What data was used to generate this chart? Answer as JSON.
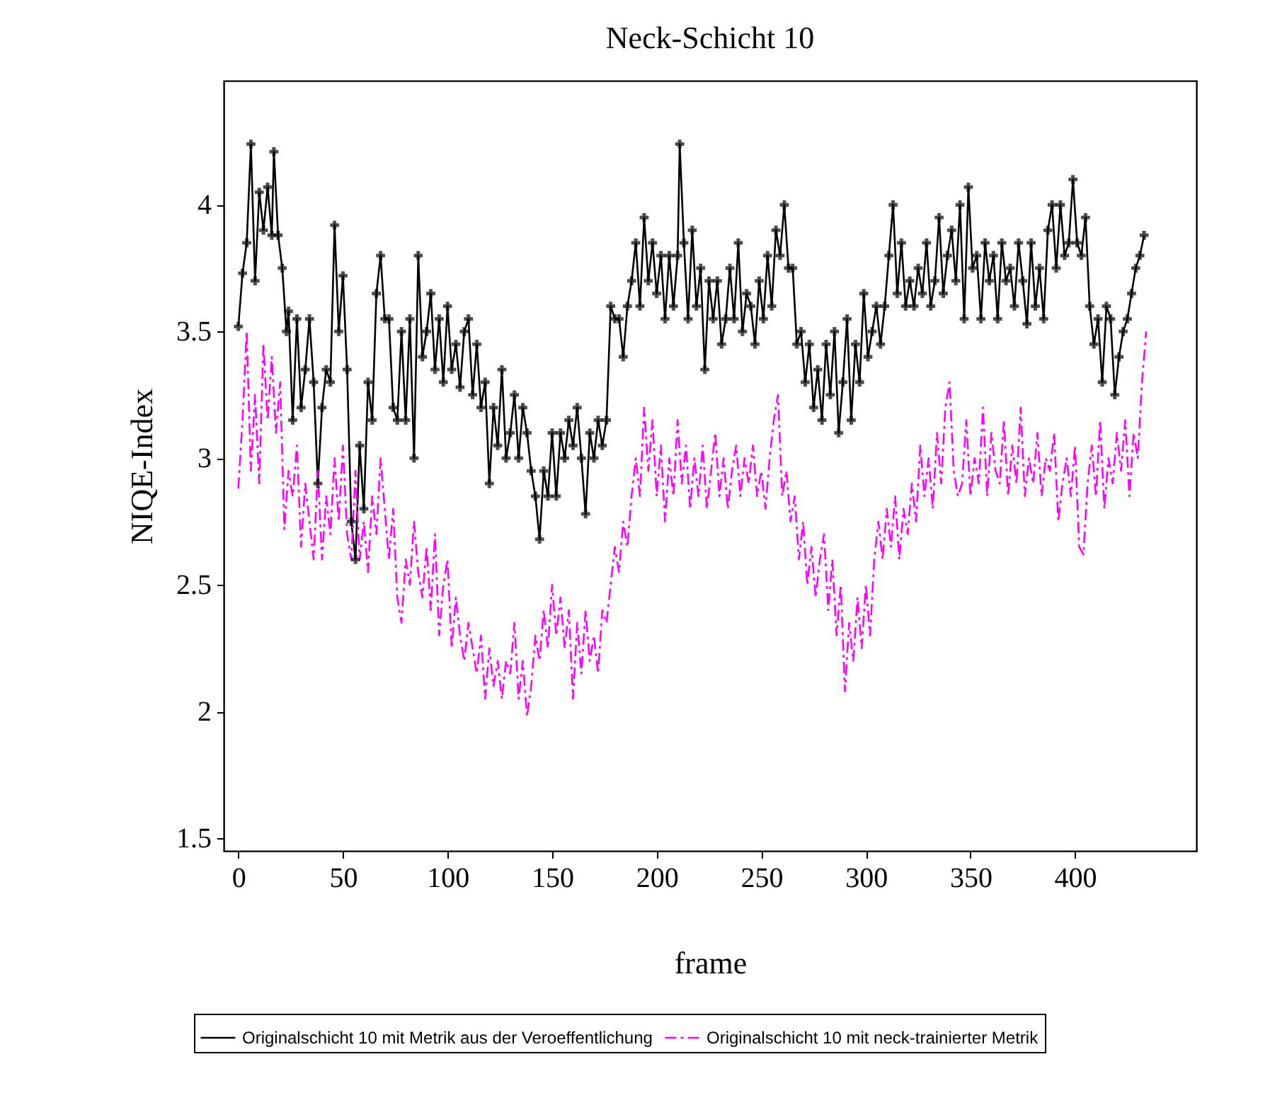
{
  "chart_data": {
    "type": "line",
    "title": "Neck-Schicht 10",
    "xlabel": "frame",
    "ylabel": "NIQE-Index",
    "xlim": [
      -7,
      458
    ],
    "ylim": [
      1.45,
      4.49
    ],
    "xticks": [
      0,
      50,
      100,
      150,
      200,
      250,
      300,
      350,
      400
    ],
    "yticks": [
      1.5,
      2,
      2.5,
      3,
      3.5,
      4
    ],
    "grid": false,
    "legend": "bottom",
    "series": [
      {
        "name": "Originalschicht 10 mit Metrik aus der Veroeffentlichung",
        "color": "#000000",
        "marker": "cross",
        "line_style": "solid",
        "x": [
          0,
          2,
          4,
          6,
          8,
          10,
          12,
          14,
          16,
          17,
          19,
          21,
          23,
          24,
          26,
          28,
          30,
          32,
          34,
          36,
          38,
          40,
          42,
          44,
          46,
          48,
          50,
          52,
          54,
          56,
          58,
          60,
          62,
          64,
          66,
          68,
          70,
          72,
          74,
          76,
          78,
          80,
          82,
          84,
          86,
          88,
          90,
          92,
          94,
          96,
          98,
          100,
          102,
          104,
          106,
          108,
          110,
          112,
          114,
          116,
          118,
          120,
          122,
          124,
          126,
          128,
          130,
          132,
          134,
          136,
          138,
          140,
          142,
          144,
          146,
          148,
          150,
          152,
          154,
          156,
          158,
          160,
          162,
          164,
          166,
          168,
          170,
          172,
          174,
          176,
          178,
          180,
          182,
          184,
          186,
          188,
          190,
          192,
          194,
          196,
          198,
          200,
          202,
          204,
          206,
          208,
          210,
          211,
          213,
          215,
          217,
          219,
          221,
          223,
          225,
          227,
          229,
          231,
          233,
          235,
          237,
          239,
          241,
          243,
          245,
          247,
          249,
          251,
          253,
          255,
          257,
          259,
          261,
          263,
          265,
          267,
          269,
          271,
          273,
          275,
          277,
          279,
          281,
          283,
          285,
          287,
          289,
          291,
          293,
          295,
          297,
          299,
          301,
          303,
          305,
          307,
          309,
          311,
          313,
          315,
          317,
          319,
          321,
          323,
          325,
          327,
          329,
          331,
          333,
          335,
          337,
          339,
          341,
          343,
          345,
          347,
          349,
          351,
          353,
          355,
          357,
          359,
          361,
          363,
          365,
          367,
          369,
          371,
          373,
          375,
          377,
          379,
          381,
          383,
          385,
          387,
          389,
          391,
          393,
          395,
          397,
          399,
          401,
          403,
          405,
          407,
          409,
          411,
          413,
          415,
          417,
          419,
          421,
          423,
          425,
          427,
          429,
          431,
          433
        ],
        "values": [
          3.52,
          3.73,
          3.85,
          4.24,
          3.7,
          4.05,
          3.9,
          4.07,
          3.88,
          4.21,
          3.88,
          3.75,
          3.5,
          3.58,
          3.15,
          3.55,
          3.2,
          3.35,
          3.55,
          3.3,
          2.9,
          3.2,
          3.35,
          3.3,
          3.92,
          3.5,
          3.72,
          3.35,
          2.75,
          2.6,
          3.05,
          2.8,
          3.3,
          3.15,
          3.65,
          3.8,
          3.55,
          3.55,
          3.2,
          3.15,
          3.5,
          3.15,
          3.55,
          3.0,
          3.8,
          3.4,
          3.5,
          3.65,
          3.35,
          3.55,
          3.3,
          3.6,
          3.35,
          3.45,
          3.28,
          3.5,
          3.55,
          3.25,
          3.45,
          3.2,
          3.3,
          2.9,
          3.2,
          3.05,
          3.35,
          3.0,
          3.1,
          3.25,
          3.0,
          3.2,
          3.1,
          2.95,
          2.85,
          2.68,
          2.95,
          2.85,
          3.1,
          2.85,
          3.1,
          3.0,
          3.15,
          3.05,
          3.2,
          3.0,
          2.78,
          3.1,
          3.0,
          3.15,
          3.05,
          3.15,
          3.6,
          3.55,
          3.55,
          3.4,
          3.6,
          3.7,
          3.85,
          3.6,
          3.95,
          3.7,
          3.85,
          3.65,
          3.8,
          3.55,
          3.8,
          3.6,
          3.8,
          4.24,
          3.85,
          3.55,
          3.9,
          3.6,
          3.75,
          3.35,
          3.7,
          3.55,
          3.7,
          3.45,
          3.55,
          3.75,
          3.55,
          3.85,
          3.5,
          3.65,
          3.6,
          3.45,
          3.7,
          3.55,
          3.8,
          3.6,
          3.9,
          3.8,
          4.0,
          3.75,
          3.75,
          3.45,
          3.5,
          3.3,
          3.45,
          3.2,
          3.35,
          3.15,
          3.45,
          3.25,
          3.5,
          3.1,
          3.3,
          3.55,
          3.15,
          3.45,
          3.3,
          3.65,
          3.4,
          3.5,
          3.6,
          3.45,
          3.6,
          3.8,
          4.0,
          3.65,
          3.85,
          3.6,
          3.7,
          3.6,
          3.75,
          3.65,
          3.85,
          3.6,
          3.7,
          3.95,
          3.65,
          3.8,
          3.9,
          3.7,
          4.0,
          3.55,
          4.07,
          3.75,
          3.8,
          3.55,
          3.85,
          3.7,
          3.8,
          3.55,
          3.85,
          3.7,
          3.75,
          3.6,
          3.85,
          3.7,
          3.53,
          3.85,
          3.6,
          3.75,
          3.55,
          3.9,
          4.0,
          3.75,
          4.0,
          3.8,
          3.85,
          4.1,
          3.85,
          3.8,
          3.95,
          3.6,
          3.45,
          3.55,
          3.3,
          3.6,
          3.55,
          3.25,
          3.4,
          3.5,
          3.55,
          3.65,
          3.75,
          3.8,
          3.88
        ]
      },
      {
        "name": "Originalschicht 10 mit neck-trainierter Metrik",
        "color": "#ff00ff",
        "marker": "none",
        "line_style": "dashed",
        "x": [
          0,
          2,
          4,
          6,
          8,
          10,
          12,
          14,
          16,
          18,
          20,
          22,
          24,
          26,
          28,
          30,
          32,
          34,
          36,
          38,
          40,
          42,
          44,
          46,
          48,
          50,
          52,
          54,
          56,
          58,
          60,
          62,
          64,
          66,
          68,
          70,
          72,
          74,
          76,
          78,
          80,
          82,
          84,
          86,
          88,
          90,
          92,
          94,
          96,
          98,
          100,
          102,
          104,
          106,
          108,
          110,
          112,
          114,
          116,
          118,
          120,
          122,
          124,
          126,
          128,
          130,
          132,
          134,
          136,
          138,
          140,
          142,
          144,
          146,
          148,
          150,
          152,
          154,
          156,
          158,
          160,
          162,
          164,
          166,
          168,
          170,
          172,
          174,
          176,
          178,
          180,
          182,
          184,
          186,
          188,
          190,
          192,
          194,
          196,
          198,
          200,
          202,
          204,
          206,
          208,
          210,
          212,
          214,
          216,
          218,
          220,
          222,
          224,
          226,
          228,
          230,
          232,
          234,
          236,
          238,
          240,
          242,
          244,
          246,
          248,
          250,
          252,
          254,
          256,
          258,
          260,
          262,
          264,
          266,
          268,
          270,
          272,
          274,
          276,
          278,
          280,
          282,
          284,
          286,
          288,
          290,
          292,
          294,
          296,
          298,
          300,
          302,
          304,
          306,
          308,
          310,
          312,
          314,
          316,
          318,
          320,
          322,
          324,
          326,
          328,
          330,
          332,
          334,
          336,
          338,
          340,
          342,
          344,
          346,
          348,
          350,
          352,
          354,
          356,
          358,
          360,
          362,
          364,
          366,
          368,
          370,
          372,
          374,
          376,
          378,
          380,
          382,
          384,
          386,
          388,
          390,
          392,
          394,
          396,
          398,
          400,
          402,
          404,
          406,
          408,
          410,
          412,
          414,
          416,
          418,
          420,
          422,
          424,
          426,
          428,
          430,
          432,
          434
        ],
        "values": [
          2.88,
          3.15,
          3.5,
          2.95,
          3.25,
          2.9,
          3.45,
          3.15,
          3.4,
          3.1,
          3.3,
          2.72,
          2.95,
          2.85,
          3.05,
          2.65,
          2.9,
          2.75,
          2.6,
          2.95,
          2.6,
          2.85,
          2.7,
          3.0,
          2.75,
          3.05,
          2.7,
          2.6,
          2.95,
          2.6,
          2.75,
          2.55,
          2.85,
          2.7,
          3.0,
          2.8,
          2.6,
          2.8,
          2.45,
          2.35,
          2.6,
          2.5,
          2.75,
          2.55,
          2.45,
          2.65,
          2.4,
          2.7,
          2.3,
          2.5,
          2.6,
          2.25,
          2.45,
          2.3,
          2.2,
          2.35,
          2.25,
          2.15,
          2.3,
          2.05,
          2.25,
          2.1,
          2.2,
          2.05,
          2.2,
          2.15,
          2.35,
          2.05,
          2.2,
          1.98,
          2.1,
          2.3,
          2.2,
          2.4,
          2.25,
          2.5,
          2.3,
          2.45,
          2.25,
          2.4,
          2.05,
          2.35,
          2.15,
          2.4,
          2.2,
          2.3,
          2.15,
          2.4,
          2.35,
          2.5,
          2.65,
          2.55,
          2.75,
          2.65,
          2.85,
          3.0,
          2.85,
          3.2,
          2.95,
          3.15,
          2.85,
          3.05,
          2.75,
          3.0,
          2.85,
          3.15,
          2.9,
          3.05,
          2.8,
          3.0,
          2.85,
          3.05,
          2.8,
          2.95,
          3.1,
          2.85,
          3.0,
          2.8,
          2.95,
          3.05,
          2.85,
          3.0,
          2.9,
          3.05,
          2.85,
          2.95,
          2.8,
          3.0,
          3.15,
          3.25,
          2.85,
          2.95,
          2.75,
          2.85,
          2.6,
          2.75,
          2.5,
          2.65,
          2.45,
          2.6,
          2.7,
          2.4,
          2.6,
          2.3,
          2.5,
          2.08,
          2.35,
          2.2,
          2.45,
          2.25,
          2.5,
          2.3,
          2.6,
          2.75,
          2.6,
          2.8,
          2.65,
          2.85,
          2.6,
          2.8,
          2.7,
          2.9,
          2.75,
          3.05,
          2.85,
          3.0,
          2.8,
          3.1,
          2.9,
          3.2,
          3.3,
          2.95,
          2.85,
          2.9,
          3.15,
          2.85,
          3.0,
          2.9,
          3.2,
          2.85,
          3.1,
          2.95,
          2.9,
          3.15,
          2.85,
          3.05,
          2.9,
          3.2,
          2.85,
          3.0,
          2.9,
          3.1,
          2.85,
          3.0,
          2.95,
          3.1,
          2.75,
          2.9,
          3.0,
          2.85,
          3.05,
          2.65,
          2.62,
          2.9,
          3.05,
          2.85,
          3.15,
          2.8,
          3.0,
          2.9,
          3.1,
          2.95,
          3.15,
          2.85,
          3.1,
          3.0,
          3.3,
          3.5
        ]
      }
    ]
  }
}
